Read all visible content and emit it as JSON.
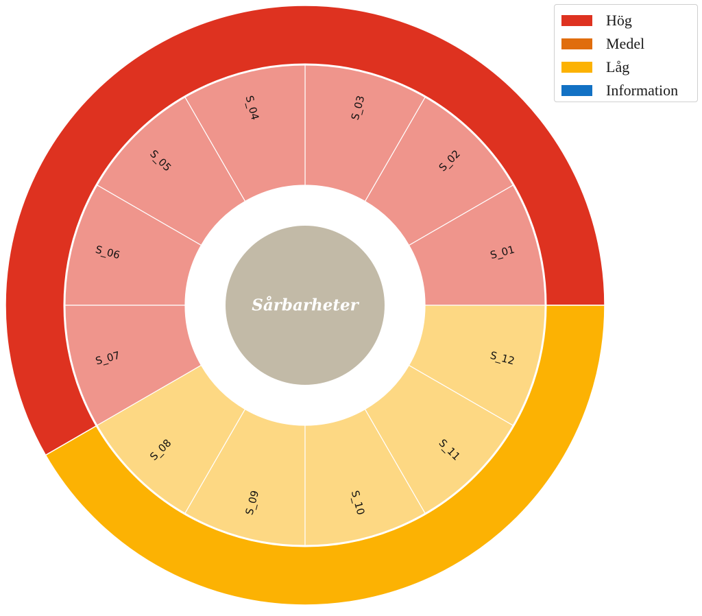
{
  "chart_data": {
    "type": "pie",
    "subtype": "sunburst",
    "center_label": "Sårbarheter",
    "center_color": "#c2baa7",
    "groups": [
      {
        "name": "Hög",
        "color": "#de3220",
        "inner_color": "#ef958c",
        "segments": [
          "S_01",
          "S_02",
          "S_03",
          "S_04",
          "S_05",
          "S_06",
          "S_07"
        ]
      },
      {
        "name": "Låg",
        "color": "#fcb203",
        "inner_color": "#fdd883",
        "segments": [
          "S_08",
          "S_09",
          "S_10",
          "S_11",
          "S_12"
        ]
      }
    ],
    "segment_value": 1,
    "start_angle_deg": 0,
    "direction": "counterclockwise",
    "legend": {
      "position": "top-right",
      "items": [
        {
          "label": "Hög",
          "color": "#de3220"
        },
        {
          "label": "Medel",
          "color": "#e06d0d"
        },
        {
          "label": "Låg",
          "color": "#fcb203"
        },
        {
          "label": "Information",
          "color": "#1271c4"
        }
      ]
    }
  }
}
